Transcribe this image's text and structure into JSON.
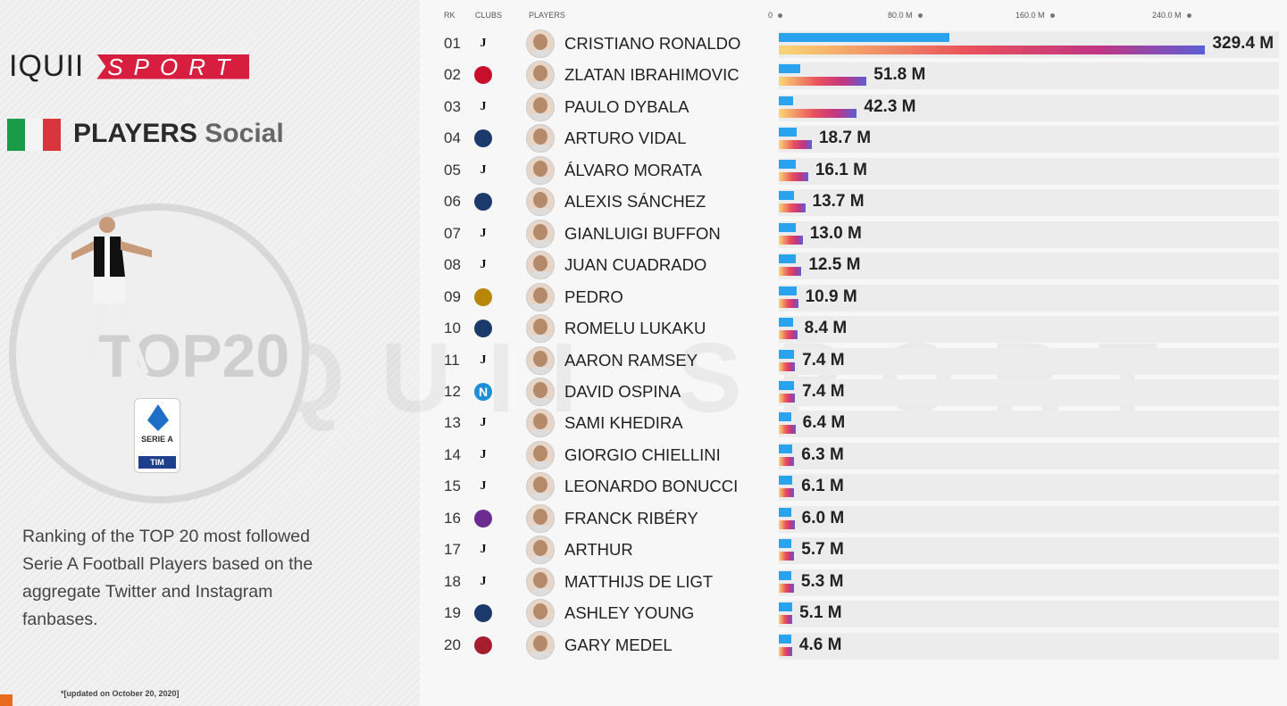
{
  "brand": {
    "logo_left": "IQUII",
    "logo_right": "SPORT"
  },
  "heading": {
    "bold": "PLAYERS",
    "light": "Social"
  },
  "badge": {
    "text": "TOP20",
    "league": "SERIE A",
    "sponsor": "TIM"
  },
  "description": "Ranking of the TOP 20 most followed Serie A Football Players based on the aggregate Twitter and Instagram fanbases.",
  "footnote": "*[updated on October 20, 2020]",
  "columns": {
    "rank": "RK",
    "clubs": "CLUBS",
    "players": "PLAYERS"
  },
  "colors": {
    "twitter": "#29a3ee",
    "instagram_gradient": [
      "#fbd673",
      "#e8505b",
      "#c13584",
      "#5b5fd6"
    ],
    "brand": "#d81e3f"
  },
  "chart_data": {
    "type": "bar",
    "orientation": "horizontal",
    "stacked": false,
    "x_ticks": [
      "0",
      "80.0 M",
      "160.0 M",
      "240.0 M"
    ],
    "unit": "M",
    "rows": [
      {
        "rank": "01",
        "club": "juventus",
        "player": "CRISTIANO RONALDO",
        "twitter": 92.1,
        "instagram": 237.3,
        "total": "329.4 M"
      },
      {
        "rank": "02",
        "club": "milan",
        "player": "ZLATAN IBRAHIMOVIC",
        "twitter": 7.0,
        "instagram": 44.8,
        "total": "51.8 M"
      },
      {
        "rank": "03",
        "club": "juventus",
        "player": "PAULO DYBALA",
        "twitter": 3.0,
        "instagram": 39.3,
        "total": "42.3 M"
      },
      {
        "rank": "04",
        "club": "inter",
        "player": "ARTURO VIDAL",
        "twitter": 5.0,
        "instagram": 13.7,
        "total": "18.7 M"
      },
      {
        "rank": "05",
        "club": "juventus",
        "player": "ÁLVARO MORATA",
        "twitter": 4.5,
        "instagram": 11.6,
        "total": "16.1 M"
      },
      {
        "rank": "06",
        "club": "inter",
        "player": "ALEXIS SÁNCHEZ",
        "twitter": 3.8,
        "instagram": 9.9,
        "total": "13.7 M"
      },
      {
        "rank": "07",
        "club": "juventus",
        "player": "GIANLUIGI BUFFON",
        "twitter": 4.5,
        "instagram": 8.5,
        "total": "13.0 M"
      },
      {
        "rank": "08",
        "club": "juventus",
        "player": "JUAN CUADRADO",
        "twitter": 4.7,
        "instagram": 7.8,
        "total": "12.5 M"
      },
      {
        "rank": "09",
        "club": "roma",
        "player": "PEDRO",
        "twitter": 5.0,
        "instagram": 5.9,
        "total": "10.9 M"
      },
      {
        "rank": "10",
        "club": "inter",
        "player": "ROMELU LUKAKU",
        "twitter": 3.0,
        "instagram": 5.4,
        "total": "8.4 M"
      },
      {
        "rank": "11",
        "club": "juventus",
        "player": "AARON RAMSEY",
        "twitter": 3.3,
        "instagram": 4.1,
        "total": "7.4 M"
      },
      {
        "rank": "12",
        "club": "napoli",
        "player": "DAVID OSPINA",
        "twitter": 3.3,
        "instagram": 4.1,
        "total": "7.4 M"
      },
      {
        "rank": "13",
        "club": "juventus",
        "player": "SAMI KHEDIRA",
        "twitter": 2.0,
        "instagram": 4.4,
        "total": "6.4 M"
      },
      {
        "rank": "14",
        "club": "juventus",
        "player": "GIORGIO CHIELLINI",
        "twitter": 2.6,
        "instagram": 3.7,
        "total": "6.3 M"
      },
      {
        "rank": "15",
        "club": "juventus",
        "player": "LEONARDO BONUCCI",
        "twitter": 2.4,
        "instagram": 3.7,
        "total": "6.1 M"
      },
      {
        "rank": "16",
        "club": "fiorentina",
        "player": "FRANCK RIBÉRY",
        "twitter": 2.1,
        "instagram": 3.9,
        "total": "6.0 M"
      },
      {
        "rank": "17",
        "club": "juventus",
        "player": "ARTHUR",
        "twitter": 2.0,
        "instagram": 3.7,
        "total": "5.7 M"
      },
      {
        "rank": "18",
        "club": "juventus",
        "player": "MATTHIJS DE LIGT",
        "twitter": 1.8,
        "instagram": 3.5,
        "total": "5.3 M"
      },
      {
        "rank": "19",
        "club": "inter",
        "player": "ASHLEY YOUNG",
        "twitter": 2.5,
        "instagram": 2.6,
        "total": "5.1 M"
      },
      {
        "rank": "20",
        "club": "bologna",
        "player": "GARY MEDEL",
        "twitter": 2.1,
        "instagram": 2.5,
        "total": "4.6 M"
      }
    ]
  }
}
